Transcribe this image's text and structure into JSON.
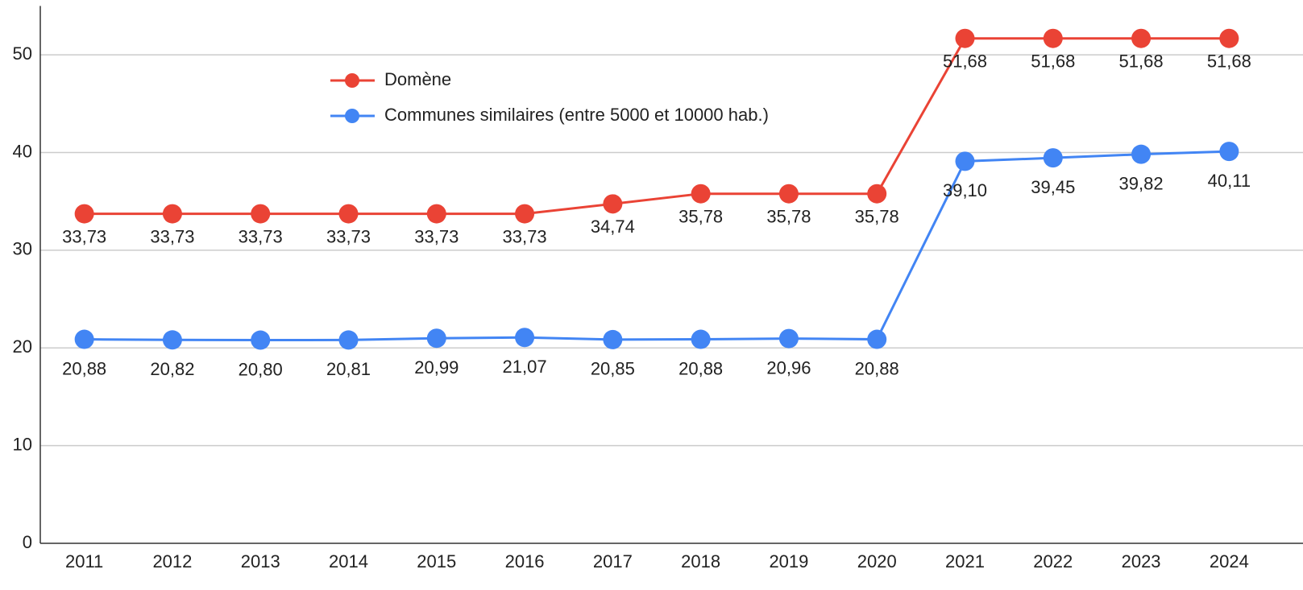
{
  "chart_data": {
    "type": "line",
    "categories": [
      "2011",
      "2012",
      "2013",
      "2014",
      "2015",
      "2016",
      "2017",
      "2018",
      "2019",
      "2020",
      "2021",
      "2022",
      "2023",
      "2024"
    ],
    "series": [
      {
        "name": "Domène",
        "color": "#ea4335",
        "values": [
          33.73,
          33.73,
          33.73,
          33.73,
          33.73,
          33.73,
          34.74,
          35.78,
          35.78,
          35.78,
          51.68,
          51.68,
          51.68,
          51.68
        ],
        "value_labels": [
          "33,73",
          "33,73",
          "33,73",
          "33,73",
          "33,73",
          "33,73",
          "34,74",
          "35,78",
          "35,78",
          "35,78",
          "51,68",
          "51,68",
          "51,68",
          "51,68"
        ]
      },
      {
        "name": "Communes similaires (entre 5000 et 10000 hab.)",
        "color": "#4285f4",
        "values": [
          20.88,
          20.82,
          20.8,
          20.81,
          20.99,
          21.07,
          20.85,
          20.88,
          20.96,
          20.88,
          39.1,
          39.45,
          39.82,
          40.11
        ],
        "value_labels": [
          "20,88",
          "20,82",
          "20,80",
          "20,81",
          "20,99",
          "21,07",
          "20,85",
          "20,88",
          "20,96",
          "20,88",
          "39,10",
          "39,45",
          "39,82",
          "40,11"
        ]
      }
    ],
    "ylim": [
      0,
      55
    ],
    "yticks": [
      0,
      10,
      20,
      30,
      40,
      50
    ],
    "grid": true
  }
}
